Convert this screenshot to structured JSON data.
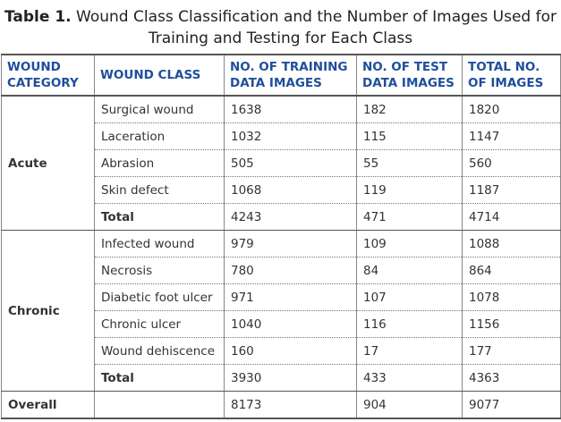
{
  "caption": {
    "label": "Table 1.",
    "text": "Wound Class Classification and the Number of Images Used for Training and Testing for Each Class"
  },
  "table": {
    "columns": [
      "WOUND CATEGORY",
      "WOUND CLASS",
      "NO. OF TRAINING DATA IMAGES",
      "NO. OF TEST DATA IMAGES",
      "TOTAL NO. OF IMAGES"
    ],
    "groups": [
      {
        "category": "Acute",
        "rows": [
          [
            "Surgical wound",
            1638,
            182,
            1820
          ],
          [
            "Laceration",
            1032,
            115,
            1147
          ],
          [
            "Abrasion",
            505,
            55,
            560
          ],
          [
            "Skin defect",
            1068,
            119,
            1187
          ]
        ],
        "total": [
          "Total",
          4243,
          471,
          4714
        ]
      },
      {
        "category": "Chronic",
        "rows": [
          [
            "Infected wound",
            979,
            109,
            1088
          ],
          [
            "Necrosis",
            780,
            84,
            864
          ],
          [
            "Diabetic foot ulcer",
            971,
            107,
            1078
          ],
          [
            "Chronic ulcer",
            1040,
            116,
            1156
          ],
          [
            "Wound dehiscence",
            160,
            17,
            177
          ]
        ],
        "total": [
          "Total",
          3930,
          433,
          4363
        ]
      }
    ],
    "overall": {
      "label": "Overall",
      "values": [
        8173,
        904,
        9077
      ]
    }
  }
}
